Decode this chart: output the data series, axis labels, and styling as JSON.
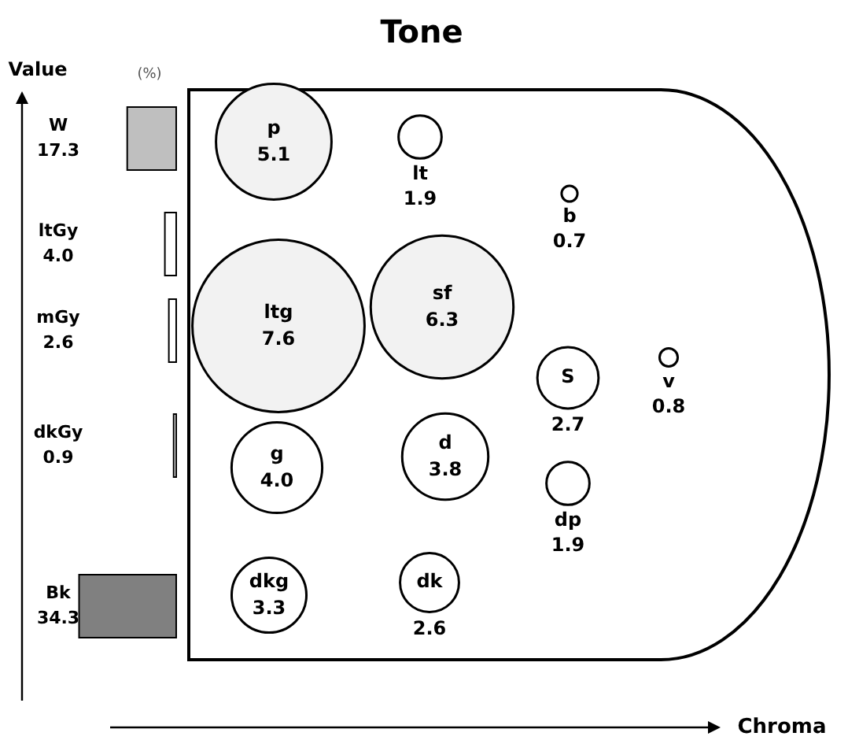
{
  "chart_data": [
    {
      "type": "bar",
      "orientation": "horizontal",
      "ylabel": "Value",
      "annotations": [
        "(%)"
      ],
      "categories": [
        "W",
        "ltGy",
        "mGy",
        "dkGy",
        "Bk"
      ],
      "values": [
        17.3,
        4.0,
        2.6,
        0.9,
        34.3
      ],
      "value_labels": [
        "17.3",
        "4.0",
        "2.6",
        "0.9",
        "34.3"
      ],
      "colors": [
        "#bfbfbf",
        "#ffffff",
        "#ffffff",
        "#ffffff",
        "#808080"
      ]
    },
    {
      "type": "other",
      "title": "Tone",
      "xlabel": "Chroma",
      "categories": [
        "p",
        "lt",
        "b",
        "ltg",
        "sf",
        "S",
        "v",
        "g",
        "d",
        "dp",
        "dkg",
        "dk"
      ],
      "values": [
        5.1,
        1.9,
        0.7,
        7.6,
        6.3,
        2.7,
        0.8,
        4.0,
        3.8,
        1.9,
        3.3,
        2.6
      ],
      "value_labels": [
        "5.1",
        "1.9",
        "0.7",
        "7.6",
        "6.3",
        "2.7",
        "0.8",
        "4.0",
        "3.8",
        "1.9",
        "3.3",
        "2.6"
      ],
      "colors": [
        "#f2f2f2",
        "#ffffff",
        "#ffffff",
        "#f2f2f2",
        "#f2f2f2",
        "#ffffff",
        "#ffffff",
        "#ffffff",
        "#ffffff",
        "#ffffff",
        "#ffffff",
        "#ffffff"
      ]
    }
  ]
}
